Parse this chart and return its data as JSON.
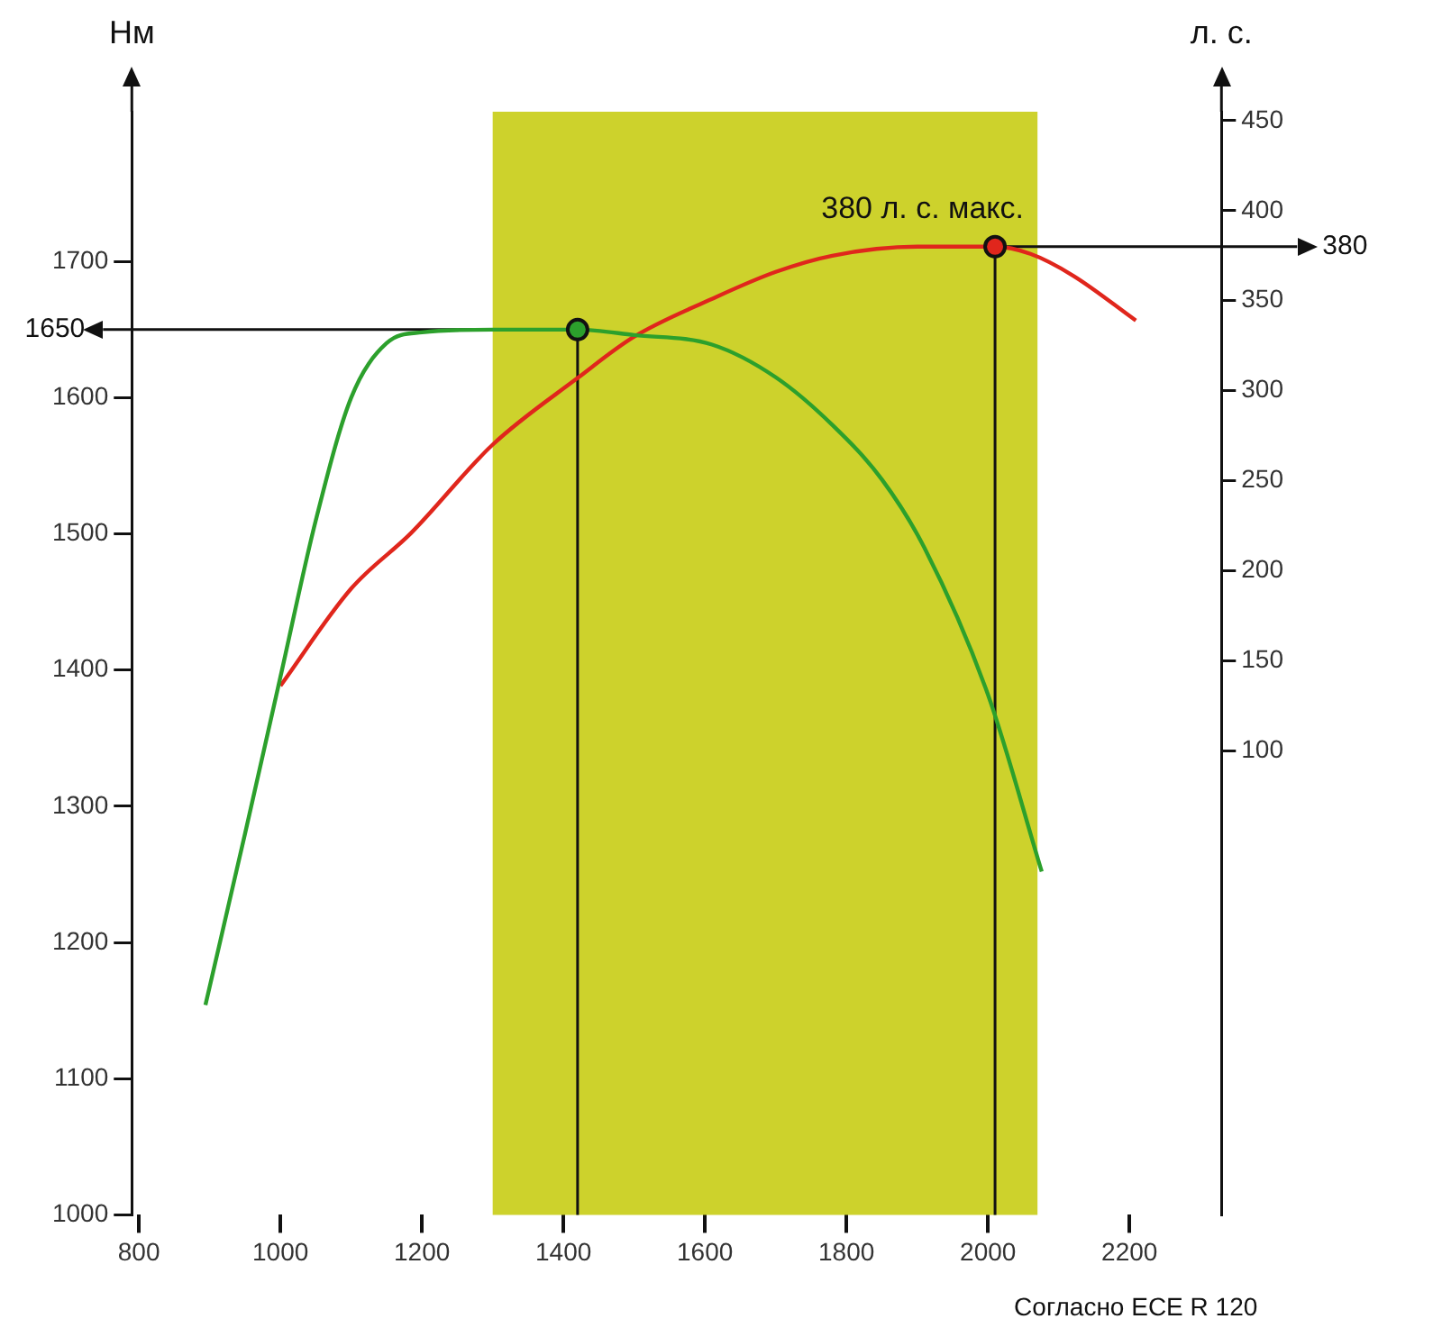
{
  "chart_data": {
    "type": "line",
    "ylabel": "Нм",
    "y2label": "л. с.",
    "xlim": [
      790,
      2330
    ],
    "xticks": [
      800,
      1000,
      1200,
      1400,
      1600,
      1800,
      2000,
      2200
    ],
    "ylim": [
      1000,
      1810
    ],
    "yticks": [
      1000,
      1100,
      1200,
      1300,
      1400,
      1500,
      1600,
      1700
    ],
    "y2lim": [
      -158,
      455
    ],
    "y2ticks": [
      100,
      150,
      200,
      250,
      300,
      350,
      400,
      450
    ],
    "series": [
      {
        "color": "#2ca02c",
        "x": [
          894,
          950,
          1000,
          1050,
          1100,
          1150,
          1200,
          1300,
          1420,
          1500,
          1610,
          1700,
          1780,
          1850,
          1910,
          2000,
          2076
        ],
        "values": [
          1154,
          1280,
          1395,
          1510,
          1600,
          1640,
          1648,
          1650,
          1650,
          1646,
          1639,
          1615,
          1580,
          1540,
          1490,
          1382,
          1252
        ]
      },
      {
        "color": "#e0261c",
        "axis": "y2",
        "x": [
          1000,
          1100,
          1185,
          1300,
          1420,
          1500,
          1610,
          1700,
          1780,
          1900,
          2010,
          2060,
          2120,
          2209
        ],
        "values": [
          136,
          190,
          221,
          270,
          307,
          330,
          351,
          366,
          375,
          380,
          380,
          376,
          364,
          339
        ]
      },
      {
        "type": "scatter",
        "color": "#2ca02c",
        "x": [
          1420
        ],
        "values": [
          1650
        ]
      },
      {
        "type": "scatter",
        "color": "#e0261c",
        "axis": "y2",
        "x": [
          2010
        ],
        "values": [
          380
        ]
      }
    ],
    "ref_lines": [
      {
        "axis": "y",
        "value": 1650,
        "label": "1650"
      },
      {
        "axis": "y2",
        "value": 380,
        "label": "380"
      },
      {
        "axis": "x",
        "value": 1420
      },
      {
        "axis": "x",
        "value": 2010
      }
    ],
    "bands": [
      {
        "axis": "x",
        "from": 1300,
        "to": 2070,
        "color": "#cdd22c"
      }
    ],
    "annotations": [
      "380 л. с. макс.",
      "Согласно ECE R 120"
    ],
    "line_style": "solid",
    "grid": false,
    "legend": false
  }
}
